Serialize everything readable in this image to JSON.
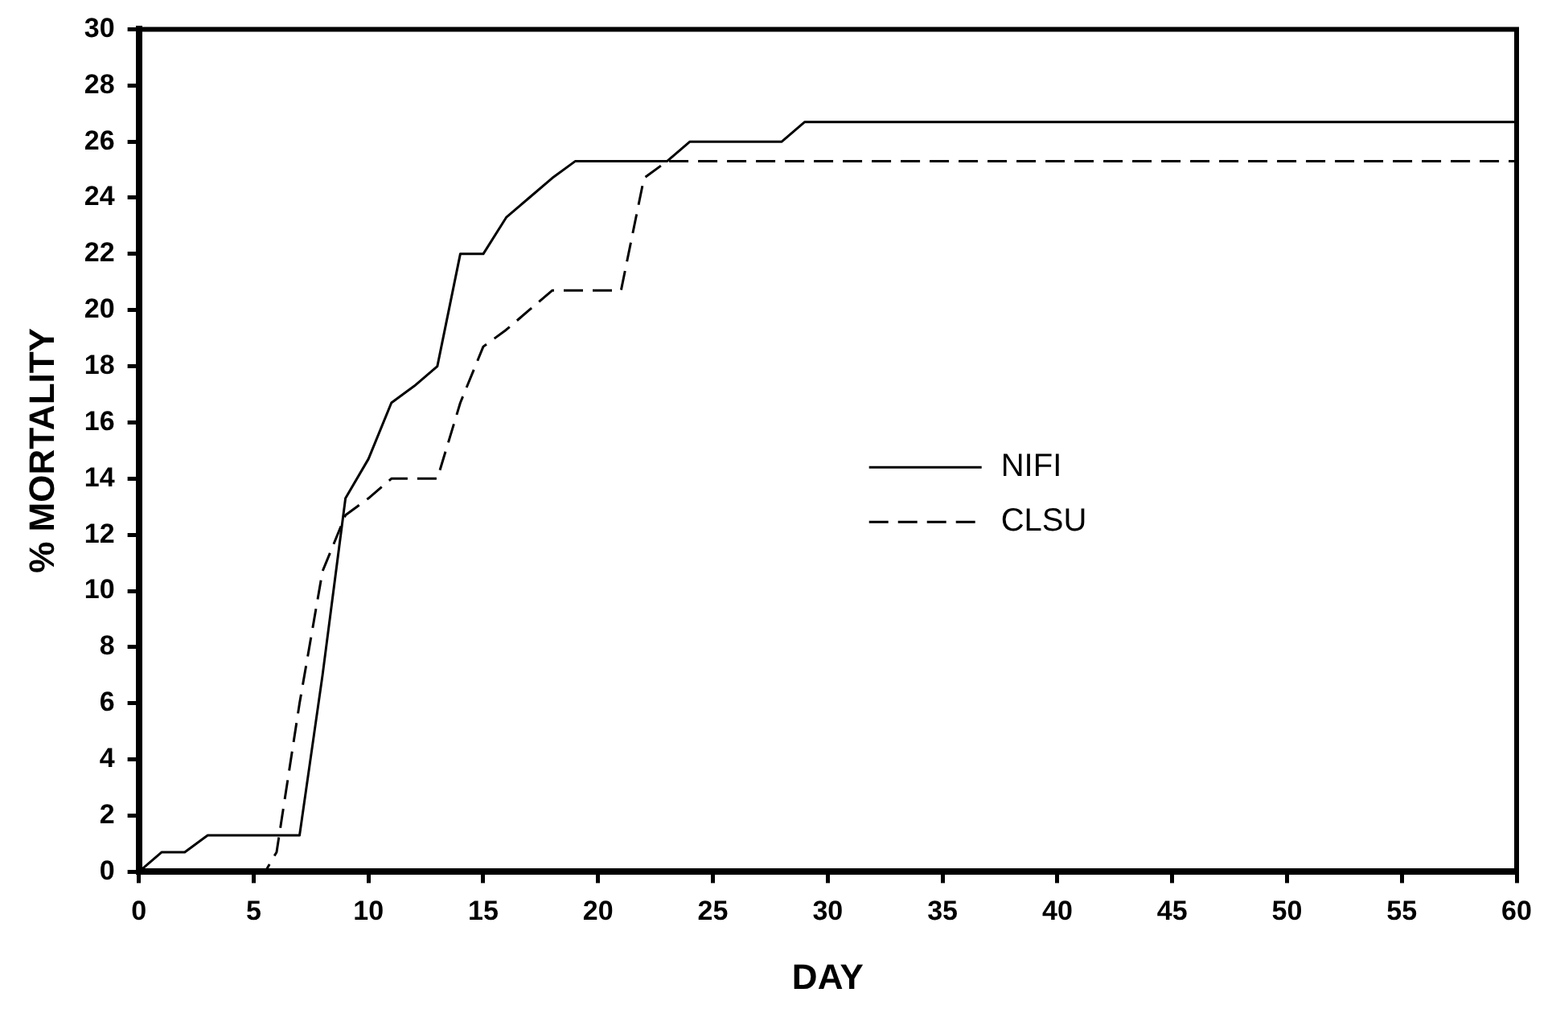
{
  "chart_data": {
    "type": "line",
    "xlabel": "DAY",
    "ylabel": "% MORTALITY",
    "xlim": [
      0,
      60
    ],
    "xticks": [
      0,
      5,
      10,
      15,
      20,
      25,
      30,
      35,
      40,
      45,
      50,
      55,
      60
    ],
    "ylim": [
      0,
      30
    ],
    "yticks": [
      0,
      2,
      4,
      6,
      8,
      10,
      12,
      14,
      16,
      18,
      20,
      22,
      24,
      26,
      28,
      30
    ],
    "grid": false,
    "legend": "right",
    "marker": "none",
    "series": [
      {
        "name": "NIFI",
        "color": "#000000",
        "line_style": "solid",
        "x": [
          0,
          1,
          2,
          3,
          7,
          8,
          9,
          10,
          11,
          12,
          13,
          14,
          15,
          16,
          17,
          18,
          19,
          23,
          24,
          28,
          29,
          60
        ],
        "values": [
          0,
          0.7,
          0.7,
          1.3,
          1.3,
          7,
          13.3,
          14.7,
          16.7,
          17.3,
          18,
          22,
          22,
          23.3,
          24,
          24.7,
          25.3,
          25.3,
          26,
          26,
          26.7,
          26.7
        ]
      },
      {
        "name": "CLSU",
        "color": "#000000",
        "line_style": "dashed",
        "x": [
          0,
          5.5,
          6,
          7,
          8,
          9,
          10,
          11,
          13,
          14,
          15,
          16,
          17,
          18,
          21,
          22,
          23,
          60
        ],
        "values": [
          0,
          0,
          0.7,
          6,
          10.7,
          12.7,
          13.3,
          14,
          14,
          16.7,
          18.7,
          19.3,
          20,
          20.7,
          20.7,
          24.7,
          25.3,
          25.3
        ]
      }
    ]
  }
}
